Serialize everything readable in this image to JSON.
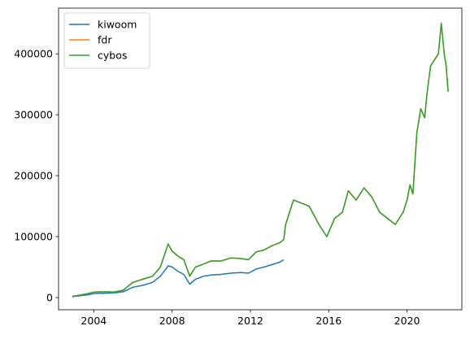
{
  "chart_data": {
    "type": "line",
    "title": "",
    "xlabel": "",
    "ylabel": "",
    "xlim": [
      2002.2,
      2022.8
    ],
    "ylim": [
      -20000,
      475000
    ],
    "x_ticks": [
      2004,
      2008,
      2012,
      2016,
      2020
    ],
    "x_tick_labels": [
      "2004",
      "2008",
      "2012",
      "2016",
      "2020"
    ],
    "y_ticks": [
      0,
      100000,
      200000,
      300000,
      400000
    ],
    "y_tick_labels": [
      "0",
      "100000",
      "200000",
      "300000",
      "400000"
    ],
    "grid": false,
    "legend_position": "top-left",
    "series": [
      {
        "name": "kiwoom",
        "color": "#1f77b4",
        "x": [
          2002.9,
          2003.3,
          2003.7,
          2004.0,
          2004.5,
          2005.0,
          2005.5,
          2006.0,
          2006.5,
          2007.0,
          2007.4,
          2007.8,
          2008.0,
          2008.3,
          2008.6,
          2008.9,
          2009.2,
          2009.6,
          2010.0,
          2010.5,
          2011.0,
          2011.5,
          2011.9,
          2012.3,
          2012.7,
          2013.1,
          2013.5,
          2013.7
        ],
        "y": [
          1500,
          3000,
          4500,
          6500,
          7000,
          7500,
          9500,
          17000,
          20000,
          25000,
          35000,
          52000,
          50000,
          43000,
          38000,
          22000,
          30000,
          35000,
          37000,
          38000,
          40000,
          41000,
          40000,
          47000,
          50000,
          54000,
          58000,
          62000
        ]
      },
      {
        "name": "fdr",
        "color": "#ff7f0e",
        "x": [
          2002.9,
          2003.3,
          2003.7,
          2004.0,
          2004.5,
          2005.0,
          2005.5,
          2006.0,
          2006.5,
          2007.0,
          2007.4,
          2007.8,
          2008.0,
          2008.3,
          2008.6,
          2008.9,
          2009.2,
          2009.6,
          2010.0,
          2010.5,
          2011.0,
          2011.5,
          2011.9,
          2012.3,
          2012.7,
          2013.1,
          2013.5,
          2013.7,
          2013.8,
          2014.2,
          2014.6,
          2015.0,
          2015.5,
          2015.9,
          2016.3,
          2016.7,
          2017.0,
          2017.4,
          2017.8,
          2018.2,
          2018.6,
          2019.0,
          2019.4,
          2019.8,
          2020.0,
          2020.15,
          2020.3,
          2020.5,
          2020.7,
          2020.9,
          2021.0,
          2021.2,
          2021.4,
          2021.6,
          2021.75,
          2021.9,
          2022.0,
          2022.1
        ],
        "y": [
          2000,
          4000,
          6500,
          9000,
          9500,
          9000,
          12000,
          25000,
          30000,
          35000,
          50000,
          88000,
          76000,
          68000,
          62000,
          35000,
          50000,
          55000,
          60000,
          60000,
          65000,
          64000,
          62000,
          75000,
          78000,
          85000,
          90000,
          95000,
          120000,
          160000,
          155000,
          150000,
          120000,
          100000,
          130000,
          140000,
          175000,
          160000,
          180000,
          165000,
          140000,
          130000,
          120000,
          140000,
          160000,
          185000,
          170000,
          270000,
          310000,
          295000,
          330000,
          380000,
          390000,
          400000,
          450000,
          400000,
          380000,
          338000
        ]
      },
      {
        "name": "cybos",
        "color": "#2ca02c",
        "x": [
          2002.9,
          2003.3,
          2003.7,
          2004.0,
          2004.5,
          2005.0,
          2005.5,
          2006.0,
          2006.5,
          2007.0,
          2007.4,
          2007.8,
          2008.0,
          2008.3,
          2008.6,
          2008.9,
          2009.2,
          2009.6,
          2010.0,
          2010.5,
          2011.0,
          2011.5,
          2011.9,
          2012.3,
          2012.7,
          2013.1,
          2013.5,
          2013.7,
          2013.8,
          2014.2,
          2014.6,
          2015.0,
          2015.5,
          2015.9,
          2016.3,
          2016.7,
          2017.0,
          2017.4,
          2017.8,
          2018.2,
          2018.6,
          2019.0,
          2019.4,
          2019.8,
          2020.0,
          2020.15,
          2020.3,
          2020.5,
          2020.7,
          2020.9,
          2021.0,
          2021.2,
          2021.4,
          2021.6,
          2021.75,
          2021.9,
          2022.0,
          2022.1
        ],
        "y": [
          2000,
          4000,
          6500,
          9000,
          9500,
          9000,
          12000,
          25000,
          30000,
          35000,
          50000,
          88000,
          76000,
          68000,
          62000,
          35000,
          50000,
          55000,
          60000,
          60000,
          65000,
          64000,
          62000,
          75000,
          78000,
          85000,
          90000,
          95000,
          120000,
          160000,
          155000,
          150000,
          120000,
          100000,
          130000,
          140000,
          175000,
          160000,
          180000,
          165000,
          140000,
          130000,
          120000,
          140000,
          160000,
          185000,
          170000,
          270000,
          310000,
          295000,
          330000,
          380000,
          390000,
          400000,
          450000,
          400000,
          380000,
          338000
        ]
      }
    ]
  }
}
